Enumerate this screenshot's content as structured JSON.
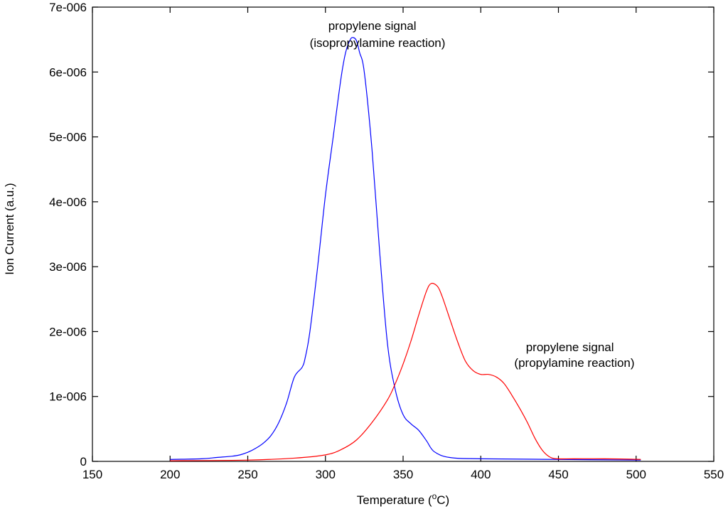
{
  "chart_data": {
    "type": "line",
    "xlabel": "Temperature (",
    "xlabel_sup": "o",
    "xlabel_tail": "C)",
    "ylabel": "Ion Current (a.u.)",
    "xlim": [
      150,
      550
    ],
    "ylim": [
      0,
      7e-06
    ],
    "x_ticks": [
      150,
      200,
      250,
      300,
      350,
      400,
      450,
      500,
      550
    ],
    "x_tick_labels": [
      "150",
      "200",
      "250",
      "300",
      "350",
      "400",
      "450",
      "500",
      "550"
    ],
    "y_ticks": [
      0,
      1e-06,
      2e-06,
      3e-06,
      4e-06,
      5e-06,
      6e-06,
      7e-06
    ],
    "y_tick_labels": [
      "0",
      "1e-006",
      "2e-006",
      "3e-006",
      "4e-006",
      "5e-006",
      "6e-006",
      "7e-006"
    ],
    "grid": false,
    "series": [
      {
        "color": "#0000ff",
        "x": [
          200,
          220,
          230,
          240,
          245,
          250,
          255,
          260,
          265,
          270,
          275,
          280,
          285,
          287,
          290,
          295,
          300,
          305,
          310,
          313,
          316,
          318,
          320,
          322,
          325,
          330,
          335,
          340,
          345,
          350,
          355,
          360,
          365,
          370,
          380,
          400,
          450,
          503
        ],
        "y": [
          3e-08,
          4e-08,
          6e-08,
          8e-08,
          1e-07,
          1.4e-07,
          2e-07,
          2.8e-07,
          4e-07,
          6e-07,
          9e-07,
          1.3e-06,
          1.45e-06,
          1.6e-06,
          2e-06,
          3e-06,
          4.1e-06,
          5e-06,
          5.9e-06,
          6.3e-06,
          6.5e-06,
          6.53e-06,
          6.48e-06,
          6.3e-06,
          6e-06,
          4.8e-06,
          3.2e-06,
          1.8e-06,
          1.1e-06,
          7.2e-07,
          5.8e-07,
          4.8e-07,
          3.2e-07,
          1.5e-07,
          6e-08,
          4e-08,
          3e-08,
          2e-08
        ]
      },
      {
        "color": "#ff0000",
        "x": [
          200,
          250,
          280,
          300,
          310,
          320,
          330,
          340,
          345,
          350,
          355,
          360,
          365,
          368,
          372,
          375,
          380,
          385,
          390,
          395,
          400,
          405,
          410,
          415,
          420,
          425,
          430,
          435,
          440,
          445,
          450,
          460,
          480,
          503
        ],
        "y": [
          1e-08,
          2e-08,
          5e-08,
          1e-07,
          1.8e-07,
          3.3e-07,
          6e-07,
          9.5e-07,
          1.2e-06,
          1.5e-06,
          1.85e-06,
          2.25e-06,
          2.62e-06,
          2.74e-06,
          2.7e-06,
          2.55e-06,
          2.2e-06,
          1.85e-06,
          1.55e-06,
          1.4e-06,
          1.34e-06,
          1.34e-06,
          1.3e-06,
          1.2e-06,
          1.02e-06,
          8.2e-07,
          6e-07,
          3.5e-07,
          1.6e-07,
          6e-08,
          4e-08,
          4e-08,
          4e-08,
          3e-08
        ]
      }
    ],
    "annotations": [
      {
        "lines": [
          "propylene signal",
          "(isopropylamine reaction)"
        ]
      },
      {
        "lines": [
          "propylene signal",
          "(propylamine reaction)"
        ]
      }
    ]
  }
}
